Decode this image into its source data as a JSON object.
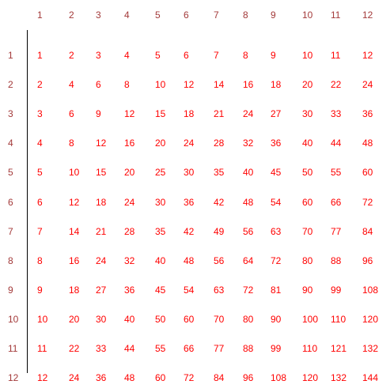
{
  "colors": {
    "header": "#a33a3a",
    "values": "#ff0000",
    "rule": "#000000"
  },
  "table": {
    "column_headers": [
      "1",
      "2",
      "3",
      "4",
      "5",
      "6",
      "7",
      "8",
      "9",
      "10",
      "11",
      "12"
    ],
    "row_headers": [
      "1",
      "2",
      "3",
      "4",
      "5",
      "6",
      "7",
      "8",
      "9",
      "10",
      "11",
      "12"
    ],
    "rows": [
      [
        "1",
        "2",
        "3",
        "4",
        "5",
        "6",
        "7",
        "8",
        "9",
        "10",
        "11",
        "12"
      ],
      [
        "2",
        "4",
        "6",
        "8",
        "10",
        "12",
        "14",
        "16",
        "18",
        "20",
        "22",
        "24"
      ],
      [
        "3",
        "6",
        "9",
        "12",
        "15",
        "18",
        "21",
        "24",
        "27",
        "30",
        "33",
        "36"
      ],
      [
        "4",
        "8",
        "12",
        "16",
        "20",
        "24",
        "28",
        "32",
        "36",
        "40",
        "44",
        "48"
      ],
      [
        "5",
        "10",
        "15",
        "20",
        "25",
        "30",
        "35",
        "40",
        "45",
        "50",
        "55",
        "60"
      ],
      [
        "6",
        "12",
        "18",
        "24",
        "30",
        "36",
        "42",
        "48",
        "54",
        "60",
        "66",
        "72"
      ],
      [
        "7",
        "14",
        "21",
        "28",
        "35",
        "42",
        "49",
        "56",
        "63",
        "70",
        "77",
        "84"
      ],
      [
        "8",
        "16",
        "24",
        "32",
        "40",
        "48",
        "56",
        "64",
        "72",
        "80",
        "88",
        "96"
      ],
      [
        "9",
        "18",
        "27",
        "36",
        "45",
        "54",
        "63",
        "72",
        "81",
        "90",
        "99",
        "108"
      ],
      [
        "10",
        "20",
        "30",
        "40",
        "50",
        "60",
        "70",
        "80",
        "90",
        "100",
        "110",
        "120"
      ],
      [
        "11",
        "22",
        "33",
        "44",
        "55",
        "66",
        "77",
        "88",
        "99",
        "110",
        "121",
        "132"
      ],
      [
        "12",
        "24",
        "36",
        "48",
        "60",
        "72",
        "84",
        "96",
        "108",
        "120",
        "132",
        "144"
      ]
    ]
  }
}
